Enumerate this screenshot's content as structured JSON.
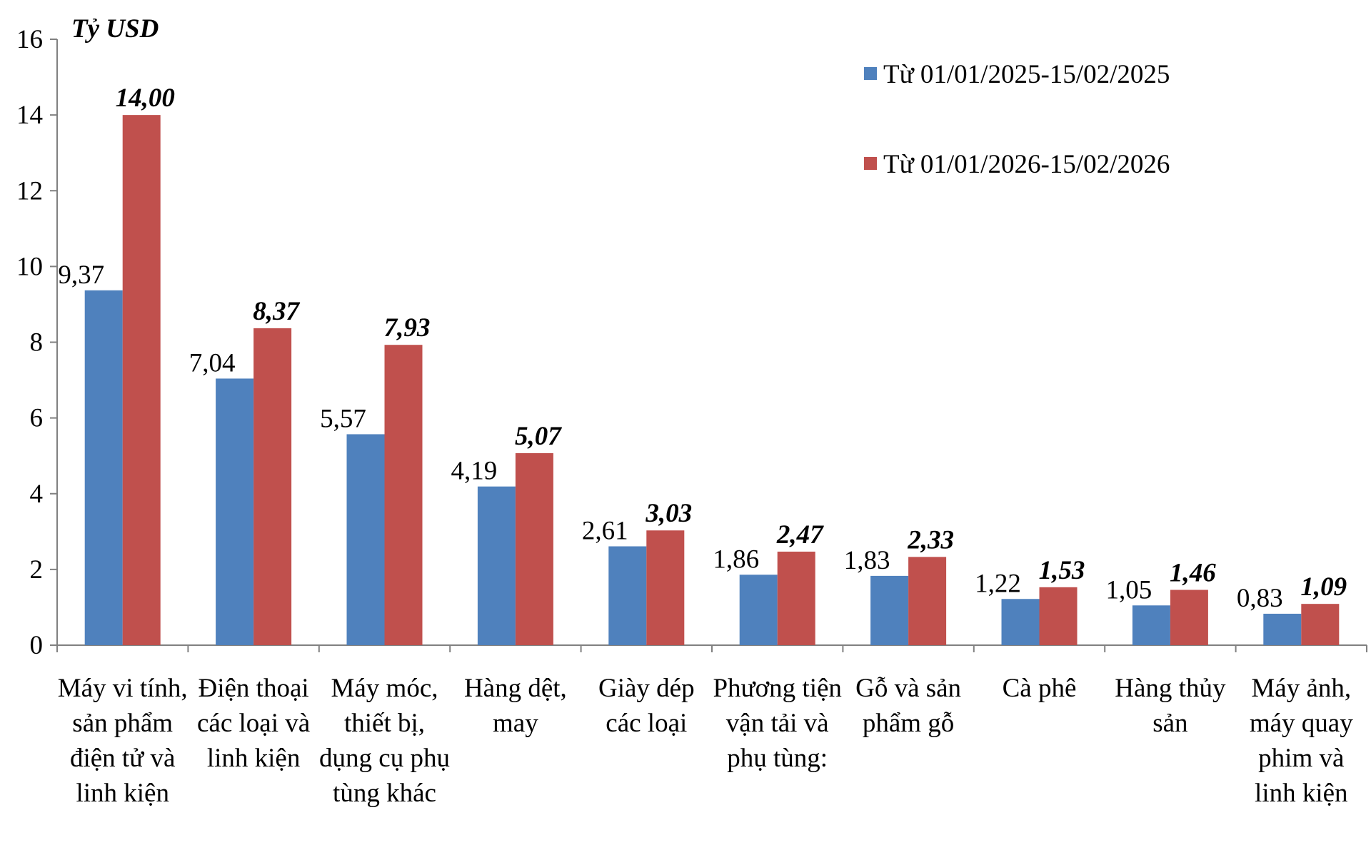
{
  "chart_data": {
    "type": "bar",
    "y_label": "Tỷ USD",
    "categories": [
      "Máy vi tính, sản phẩm điện tử và linh kiện",
      "Điện thoại các loại và linh kiện",
      "Máy móc, thiết bị, dụng cụ phụ tùng khác",
      "Hàng dệt, may",
      "Giày dép các loại",
      "Phương tiện vận tải và phụ tùng:",
      "Gỗ và sản phẩm gỗ",
      "Cà phê",
      "Hàng thủy sản",
      "Máy ảnh, máy quay phim và linh kiện"
    ],
    "series": [
      {
        "name": "Từ 01/01/2025-15/02/2025",
        "color": "#4f81bd",
        "values": [
          9.37,
          7.04,
          5.57,
          4.19,
          2.61,
          1.86,
          1.83,
          1.22,
          1.05,
          0.83
        ],
        "value_labels": [
          "9,37",
          "7,04",
          "5,57",
          "4,19",
          "2,61",
          "1,86",
          "1,83",
          "1,22",
          "1,05",
          "0,83"
        ]
      },
      {
        "name": "Từ 01/01/2026-15/02/2026",
        "color": "#c0504d",
        "values": [
          14.0,
          8.37,
          7.93,
          5.07,
          3.03,
          2.47,
          2.33,
          1.53,
          1.46,
          1.09
        ],
        "value_labels": [
          "14,00",
          "8,37",
          "7,93",
          "5,07",
          "3,03",
          "2,47",
          "2,33",
          "1,53",
          "1,46",
          "1,09"
        ]
      }
    ],
    "ylim": [
      0,
      16
    ],
    "yticks": [
      0,
      2,
      4,
      6,
      8,
      10,
      12,
      14,
      16
    ],
    "grid": false
  }
}
